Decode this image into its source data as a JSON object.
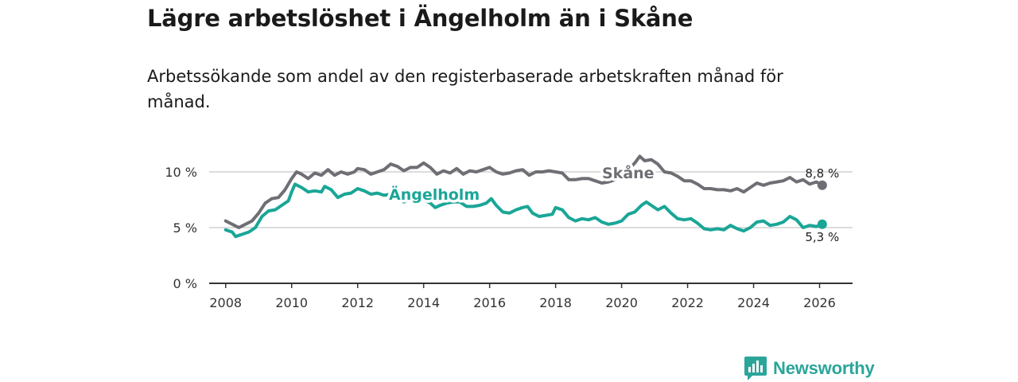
{
  "title": "Lägre arbetslöshet i Ängelholm än i Skåne",
  "subtitle": "Arbetssökande som andel av den registerbaserade arbetskraften månad för månad.",
  "brand": {
    "name": "Newsworthy",
    "icon": "newsworthy-logo-icon"
  },
  "colors": {
    "skane": "#6f6e74",
    "angelholm": "#1aa697",
    "grid": "#d0d0d0",
    "axis": "#333333"
  },
  "chart_data": {
    "type": "line",
    "title": "Lägre arbetslöshet i Ängelholm än i Skåne",
    "xlabel": "",
    "ylabel": "",
    "xlim": [
      2007.5,
      2027.0
    ],
    "ylim": [
      0,
      10
    ],
    "x_ticks": [
      2008,
      2010,
      2012,
      2014,
      2016,
      2018,
      2020,
      2022,
      2024,
      2026
    ],
    "x_tick_labels": [
      "2008",
      "2010",
      "2012",
      "2014",
      "2016",
      "2018",
      "2020",
      "2022",
      "2024",
      "2026"
    ],
    "y_ticks": [
      0,
      5,
      10
    ],
    "y_tick_labels": [
      "0 %",
      "5 %",
      "10 %"
    ],
    "grid": true,
    "series": [
      {
        "name": "Skåne",
        "color": "#6f6e74",
        "end_label": "8,8 %",
        "points": [
          [
            2008.0,
            5.6
          ],
          [
            2008.2,
            5.3
          ],
          [
            2008.4,
            5.0
          ],
          [
            2008.6,
            5.3
          ],
          [
            2008.8,
            5.6
          ],
          [
            2009.0,
            6.3
          ],
          [
            2009.2,
            7.2
          ],
          [
            2009.4,
            7.6
          ],
          [
            2009.6,
            7.7
          ],
          [
            2009.8,
            8.4
          ],
          [
            2010.0,
            9.4
          ],
          [
            2010.15,
            10.0
          ],
          [
            2010.3,
            9.8
          ],
          [
            2010.5,
            9.4
          ],
          [
            2010.7,
            9.9
          ],
          [
            2010.9,
            9.7
          ],
          [
            2011.1,
            10.2
          ],
          [
            2011.3,
            9.7
          ],
          [
            2011.5,
            10.0
          ],
          [
            2011.7,
            9.8
          ],
          [
            2011.9,
            10.0
          ],
          [
            2012.0,
            10.3
          ],
          [
            2012.2,
            10.2
          ],
          [
            2012.4,
            9.8
          ],
          [
            2012.6,
            10.0
          ],
          [
            2012.8,
            10.2
          ],
          [
            2013.0,
            10.7
          ],
          [
            2013.2,
            10.5
          ],
          [
            2013.4,
            10.1
          ],
          [
            2013.6,
            10.4
          ],
          [
            2013.8,
            10.4
          ],
          [
            2014.0,
            10.8
          ],
          [
            2014.2,
            10.4
          ],
          [
            2014.4,
            9.8
          ],
          [
            2014.6,
            10.1
          ],
          [
            2014.8,
            9.9
          ],
          [
            2015.0,
            10.3
          ],
          [
            2015.2,
            9.8
          ],
          [
            2015.4,
            10.1
          ],
          [
            2015.6,
            10.0
          ],
          [
            2015.8,
            10.2
          ],
          [
            2016.0,
            10.4
          ],
          [
            2016.2,
            10.0
          ],
          [
            2016.4,
            9.8
          ],
          [
            2016.6,
            9.9
          ],
          [
            2016.8,
            10.1
          ],
          [
            2017.0,
            10.2
          ],
          [
            2017.2,
            9.7
          ],
          [
            2017.4,
            10.0
          ],
          [
            2017.6,
            10.0
          ],
          [
            2017.8,
            10.1
          ],
          [
            2018.0,
            10.0
          ],
          [
            2018.2,
            9.9
          ],
          [
            2018.4,
            9.3
          ],
          [
            2018.6,
            9.3
          ],
          [
            2018.8,
            9.4
          ],
          [
            2019.0,
            9.4
          ],
          [
            2019.2,
            9.2
          ],
          [
            2019.4,
            9.0
          ],
          [
            2019.6,
            9.1
          ],
          [
            2019.8,
            9.3
          ],
          [
            2020.0,
            9.6
          ],
          [
            2020.2,
            10.2
          ],
          [
            2020.4,
            10.8
          ],
          [
            2020.55,
            11.4
          ],
          [
            2020.7,
            11.0
          ],
          [
            2020.9,
            11.1
          ],
          [
            2021.1,
            10.7
          ],
          [
            2021.3,
            10.0
          ],
          [
            2021.5,
            9.9
          ],
          [
            2021.7,
            9.6
          ],
          [
            2021.9,
            9.2
          ],
          [
            2022.1,
            9.2
          ],
          [
            2022.3,
            8.9
          ],
          [
            2022.5,
            8.5
          ],
          [
            2022.7,
            8.5
          ],
          [
            2022.9,
            8.4
          ],
          [
            2023.1,
            8.4
          ],
          [
            2023.3,
            8.3
          ],
          [
            2023.5,
            8.5
          ],
          [
            2023.7,
            8.2
          ],
          [
            2023.9,
            8.6
          ],
          [
            2024.1,
            9.0
          ],
          [
            2024.3,
            8.8
          ],
          [
            2024.5,
            9.0
          ],
          [
            2024.7,
            9.1
          ],
          [
            2024.9,
            9.2
          ],
          [
            2025.1,
            9.5
          ],
          [
            2025.3,
            9.1
          ],
          [
            2025.5,
            9.3
          ],
          [
            2025.7,
            8.9
          ],
          [
            2025.9,
            9.1
          ],
          [
            2026.08,
            8.8
          ]
        ]
      },
      {
        "name": "Ängelholm",
        "color": "#1aa697",
        "end_label": "5,3 %",
        "points": [
          [
            2008.0,
            4.8
          ],
          [
            2008.2,
            4.6
          ],
          [
            2008.3,
            4.2
          ],
          [
            2008.5,
            4.4
          ],
          [
            2008.7,
            4.6
          ],
          [
            2008.9,
            5.0
          ],
          [
            2009.1,
            6.0
          ],
          [
            2009.3,
            6.5
          ],
          [
            2009.5,
            6.6
          ],
          [
            2009.7,
            7.0
          ],
          [
            2009.9,
            7.4
          ],
          [
            2010.0,
            8.2
          ],
          [
            2010.1,
            8.9
          ],
          [
            2010.3,
            8.6
          ],
          [
            2010.5,
            8.2
          ],
          [
            2010.7,
            8.3
          ],
          [
            2010.9,
            8.2
          ],
          [
            2011.0,
            8.7
          ],
          [
            2011.2,
            8.4
          ],
          [
            2011.4,
            7.7
          ],
          [
            2011.6,
            8.0
          ],
          [
            2011.8,
            8.1
          ],
          [
            2012.0,
            8.5
          ],
          [
            2012.2,
            8.3
          ],
          [
            2012.4,
            8.0
          ],
          [
            2012.6,
            8.1
          ],
          [
            2012.8,
            7.9
          ],
          [
            2013.0,
            8.0
          ],
          [
            2013.2,
            7.7
          ],
          [
            2013.4,
            7.3
          ],
          [
            2013.6,
            7.6
          ],
          [
            2013.8,
            7.2
          ],
          [
            2014.0,
            7.5
          ],
          [
            2014.2,
            7.2
          ],
          [
            2014.35,
            6.8
          ],
          [
            2014.5,
            7.0
          ],
          [
            2014.7,
            7.2
          ],
          [
            2014.9,
            7.3
          ],
          [
            2015.1,
            7.3
          ],
          [
            2015.3,
            6.9
          ],
          [
            2015.5,
            6.9
          ],
          [
            2015.7,
            7.0
          ],
          [
            2015.9,
            7.2
          ],
          [
            2016.05,
            7.6
          ],
          [
            2016.2,
            7.0
          ],
          [
            2016.4,
            6.4
          ],
          [
            2016.6,
            6.3
          ],
          [
            2016.8,
            6.6
          ],
          [
            2017.0,
            6.8
          ],
          [
            2017.15,
            6.9
          ],
          [
            2017.3,
            6.3
          ],
          [
            2017.5,
            6.0
          ],
          [
            2017.7,
            6.1
          ],
          [
            2017.9,
            6.2
          ],
          [
            2018.0,
            6.8
          ],
          [
            2018.2,
            6.6
          ],
          [
            2018.4,
            5.9
          ],
          [
            2018.6,
            5.6
          ],
          [
            2018.8,
            5.8
          ],
          [
            2019.0,
            5.7
          ],
          [
            2019.2,
            5.9
          ],
          [
            2019.4,
            5.5
          ],
          [
            2019.6,
            5.3
          ],
          [
            2019.8,
            5.4
          ],
          [
            2020.0,
            5.6
          ],
          [
            2020.2,
            6.2
          ],
          [
            2020.4,
            6.4
          ],
          [
            2020.6,
            7.0
          ],
          [
            2020.75,
            7.3
          ],
          [
            2020.9,
            7.0
          ],
          [
            2021.1,
            6.6
          ],
          [
            2021.3,
            6.9
          ],
          [
            2021.5,
            6.3
          ],
          [
            2021.7,
            5.8
          ],
          [
            2021.9,
            5.7
          ],
          [
            2022.1,
            5.8
          ],
          [
            2022.3,
            5.4
          ],
          [
            2022.5,
            4.9
          ],
          [
            2022.7,
            4.8
          ],
          [
            2022.9,
            4.9
          ],
          [
            2023.1,
            4.8
          ],
          [
            2023.3,
            5.2
          ],
          [
            2023.5,
            4.9
          ],
          [
            2023.7,
            4.7
          ],
          [
            2023.9,
            5.0
          ],
          [
            2024.1,
            5.5
          ],
          [
            2024.3,
            5.6
          ],
          [
            2024.5,
            5.2
          ],
          [
            2024.7,
            5.3
          ],
          [
            2024.9,
            5.5
          ],
          [
            2025.1,
            6.0
          ],
          [
            2025.3,
            5.7
          ],
          [
            2025.5,
            5.0
          ],
          [
            2025.7,
            5.2
          ],
          [
            2025.9,
            5.1
          ],
          [
            2026.08,
            5.3
          ]
        ]
      }
    ],
    "annotations": [
      {
        "text": "Skåne",
        "series": "Skåne",
        "at_x": 2020.0
      },
      {
        "text": "Ängelholm",
        "series": "Ängelholm",
        "at_x": 2013.5
      }
    ]
  }
}
